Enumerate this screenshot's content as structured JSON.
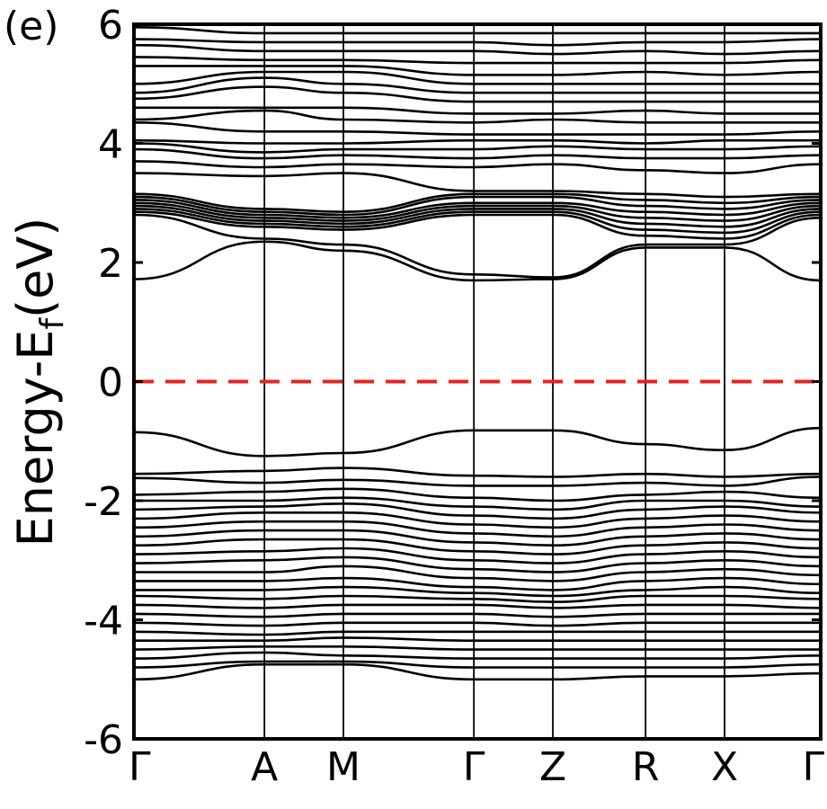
{
  "chart_data": {
    "type": "line",
    "panel_label": "(e)",
    "ylabel_main": "Energy-E",
    "ylabel_sub": "f",
    "ylabel_tail": "(eV)",
    "xlabel": "",
    "ylim": [
      -6,
      6
    ],
    "yticks": [
      -6,
      -4,
      -2,
      0,
      2,
      4,
      6
    ],
    "ytick_labels": [
      "-6",
      "-4",
      "-2",
      "0",
      "2",
      "4",
      "6"
    ],
    "kpoints": [
      {
        "label": "Γ",
        "pos": 0.0
      },
      {
        "label": "A",
        "pos": 0.19
      },
      {
        "label": "M",
        "pos": 0.305
      },
      {
        "label": "Γ",
        "pos": 0.495
      },
      {
        "label": "Z",
        "pos": 0.61
      },
      {
        "label": "R",
        "pos": 0.745
      },
      {
        "label": "X",
        "pos": 0.86
      },
      {
        "label": "Γ",
        "pos": 1.0
      }
    ],
    "fermi_level": {
      "energy": 0,
      "color": "#e8231e",
      "style": "dashed"
    },
    "band_color": "#000000",
    "series": [
      {
        "values": [
          -0.85,
          -1.25,
          -1.2,
          -0.82,
          -0.82,
          -1.05,
          -1.15,
          -0.78
        ]
      },
      {
        "values": [
          -1.55,
          -1.5,
          -1.45,
          -1.58,
          -1.6,
          -1.55,
          -1.6,
          -1.55
        ]
      },
      {
        "values": [
          -1.62,
          -1.7,
          -1.65,
          -1.75,
          -1.75,
          -1.7,
          -1.75,
          -1.6
        ]
      },
      {
        "values": [
          -1.9,
          -1.85,
          -1.8,
          -1.95,
          -2.0,
          -1.9,
          -1.85,
          -1.95
        ]
      },
      {
        "values": [
          -2.0,
          -2.0,
          -1.95,
          -2.1,
          -2.15,
          -2.0,
          -2.0,
          -2.1
        ]
      },
      {
        "values": [
          -2.15,
          -2.1,
          -2.05,
          -2.25,
          -2.3,
          -2.15,
          -2.1,
          -2.2
        ]
      },
      {
        "values": [
          -2.3,
          -2.2,
          -2.2,
          -2.4,
          -2.45,
          -2.3,
          -2.25,
          -2.35
        ]
      },
      {
        "values": [
          -2.45,
          -2.35,
          -2.35,
          -2.55,
          -2.6,
          -2.45,
          -2.4,
          -2.5
        ]
      },
      {
        "values": [
          -2.6,
          -2.5,
          -2.5,
          -2.7,
          -2.75,
          -2.6,
          -2.55,
          -2.65
        ]
      },
      {
        "values": [
          -2.75,
          -2.65,
          -2.65,
          -2.85,
          -2.9,
          -2.75,
          -2.7,
          -2.8
        ]
      },
      {
        "values": [
          -2.9,
          -2.85,
          -2.8,
          -3.0,
          -3.05,
          -2.9,
          -2.85,
          -2.95
        ]
      },
      {
        "values": [
          -3.05,
          -3.0,
          -2.95,
          -3.15,
          -3.2,
          -3.05,
          -3.0,
          -3.1
        ]
      },
      {
        "values": [
          -3.2,
          -3.2,
          -3.1,
          -3.3,
          -3.35,
          -3.2,
          -3.15,
          -3.25
        ]
      },
      {
        "values": [
          -3.35,
          -3.35,
          -3.3,
          -3.45,
          -3.5,
          -3.35,
          -3.3,
          -3.4
        ]
      },
      {
        "values": [
          -3.5,
          -3.5,
          -3.45,
          -3.55,
          -3.6,
          -3.5,
          -3.45,
          -3.55
        ]
      },
      {
        "values": [
          -3.6,
          -3.65,
          -3.6,
          -3.65,
          -3.7,
          -3.6,
          -3.6,
          -3.65
        ]
      },
      {
        "values": [
          -3.75,
          -3.8,
          -3.75,
          -3.75,
          -3.8,
          -3.75,
          -3.75,
          -3.8
        ]
      },
      {
        "values": [
          -3.9,
          -3.95,
          -3.9,
          -3.9,
          -3.95,
          -3.9,
          -3.9,
          -3.9
        ]
      },
      {
        "values": [
          -4.05,
          -4.1,
          -4.05,
          -4.05,
          -4.1,
          -4.05,
          -4.05,
          -4.05
        ]
      },
      {
        "values": [
          -4.2,
          -4.25,
          -4.2,
          -4.2,
          -4.2,
          -4.2,
          -4.2,
          -4.2
        ]
      },
      {
        "values": [
          -4.35,
          -4.35,
          -4.3,
          -4.35,
          -4.35,
          -4.35,
          -4.35,
          -4.35
        ]
      },
      {
        "values": [
          -4.5,
          -4.45,
          -4.45,
          -4.5,
          -4.5,
          -4.5,
          -4.5,
          -4.5
        ]
      },
      {
        "values": [
          -4.65,
          -4.55,
          -4.6,
          -4.65,
          -4.65,
          -4.65,
          -4.65,
          -4.6
        ]
      },
      {
        "values": [
          -4.8,
          -4.7,
          -4.7,
          -4.8,
          -4.8,
          -4.8,
          -4.8,
          -4.75
        ]
      },
      {
        "values": [
          -5.0,
          -4.75,
          -4.75,
          -5.0,
          -5.0,
          -4.95,
          -4.95,
          -4.9
        ]
      },
      {
        "values": [
          1.72,
          2.35,
          2.2,
          1.7,
          1.72,
          2.25,
          2.25,
          1.7
        ]
      },
      {
        "values": [
          2.8,
          2.4,
          2.3,
          1.8,
          1.75,
          2.3,
          2.3,
          2.75
        ]
      },
      {
        "values": [
          2.85,
          2.6,
          2.55,
          2.8,
          2.8,
          2.45,
          2.4,
          2.8
        ]
      },
      {
        "values": [
          2.9,
          2.65,
          2.6,
          2.85,
          2.85,
          2.55,
          2.5,
          2.85
        ]
      },
      {
        "values": [
          2.95,
          2.7,
          2.65,
          2.9,
          2.9,
          2.65,
          2.6,
          2.9
        ]
      },
      {
        "values": [
          3.0,
          2.75,
          2.7,
          2.95,
          2.95,
          2.75,
          2.7,
          2.95
        ]
      },
      {
        "values": [
          3.05,
          2.8,
          2.75,
          3.0,
          3.0,
          2.85,
          2.8,
          3.0
        ]
      },
      {
        "values": [
          3.1,
          2.85,
          2.8,
          3.1,
          3.1,
          2.95,
          2.9,
          3.05
        ]
      },
      {
        "values": [
          3.15,
          2.9,
          2.85,
          3.15,
          3.15,
          3.05,
          3.0,
          3.1
        ]
      },
      {
        "values": [
          3.5,
          3.45,
          3.5,
          3.2,
          3.2,
          3.15,
          3.1,
          3.15
        ]
      },
      {
        "values": [
          3.7,
          3.6,
          3.65,
          3.6,
          3.65,
          3.55,
          3.5,
          3.65
        ]
      },
      {
        "values": [
          3.9,
          3.75,
          3.8,
          3.75,
          3.8,
          3.75,
          3.75,
          3.8
        ]
      },
      {
        "values": [
          4.0,
          3.85,
          3.9,
          3.9,
          3.95,
          3.9,
          3.9,
          3.95
        ]
      },
      {
        "values": [
          4.05,
          4.0,
          4.0,
          4.05,
          4.05,
          4.0,
          4.05,
          4.05
        ]
      },
      {
        "values": [
          4.35,
          4.2,
          4.2,
          4.15,
          4.15,
          4.15,
          4.15,
          4.2
        ]
      },
      {
        "values": [
          4.4,
          4.55,
          4.4,
          4.35,
          4.4,
          4.35,
          4.35,
          4.35
        ]
      },
      {
        "values": [
          4.6,
          4.6,
          4.6,
          4.5,
          4.5,
          4.55,
          4.5,
          4.5
        ]
      },
      {
        "values": [
          4.75,
          4.95,
          4.85,
          4.7,
          4.7,
          4.7,
          4.7,
          4.7
        ]
      },
      {
        "values": [
          4.85,
          5.1,
          5.0,
          4.85,
          4.85,
          4.85,
          4.85,
          4.85
        ]
      },
      {
        "values": [
          5.0,
          5.2,
          5.2,
          5.0,
          5.0,
          5.0,
          5.0,
          5.0
        ]
      },
      {
        "values": [
          5.3,
          5.3,
          5.3,
          5.15,
          5.15,
          5.2,
          5.15,
          5.2
        ]
      },
      {
        "values": [
          5.45,
          5.4,
          5.4,
          5.35,
          5.35,
          5.35,
          5.35,
          5.4
        ]
      },
      {
        "values": [
          5.65,
          5.55,
          5.55,
          5.55,
          5.5,
          5.55,
          5.5,
          5.55
        ]
      },
      {
        "values": [
          5.75,
          5.7,
          5.7,
          5.7,
          5.65,
          5.7,
          5.7,
          5.75
        ]
      },
      {
        "values": [
          5.95,
          5.85,
          5.85,
          5.85,
          5.85,
          5.85,
          5.85,
          5.85
        ]
      }
    ]
  }
}
